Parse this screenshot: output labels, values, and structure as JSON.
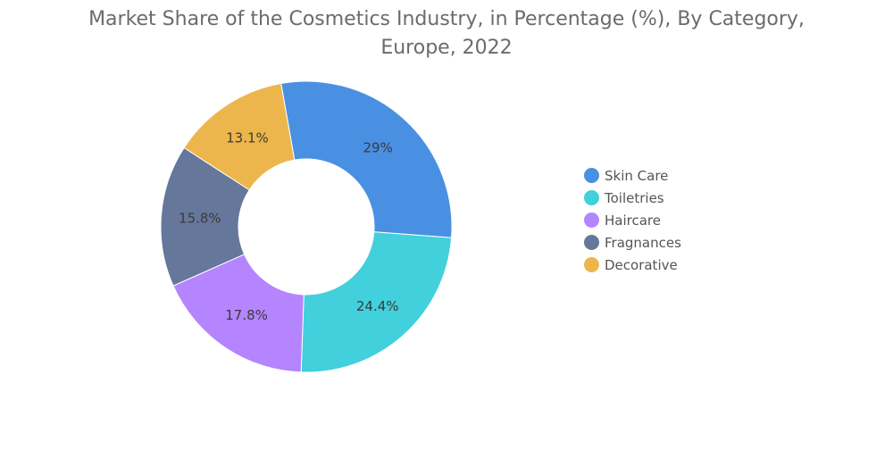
{
  "chart_data": {
    "type": "pie",
    "title_lines": [
      "Market Share of the Cosmetics Industry, in Percentage (%), By Category,",
      "Europe, 2022"
    ],
    "categories": [
      "Skin Care",
      "Toiletries",
      "Haircare",
      "Fragnances",
      "Decorative"
    ],
    "values": [
      29,
      24.4,
      17.8,
      15.8,
      13.1
    ],
    "value_labels": [
      "29%",
      "24.4%",
      "17.8%",
      "15.8%",
      "13.1%"
    ],
    "colors": [
      "#4A90E2",
      "#41D0DC",
      "#B584FF",
      "#66779C",
      "#EDB64C"
    ],
    "legend_position": "right",
    "donut": true
  }
}
